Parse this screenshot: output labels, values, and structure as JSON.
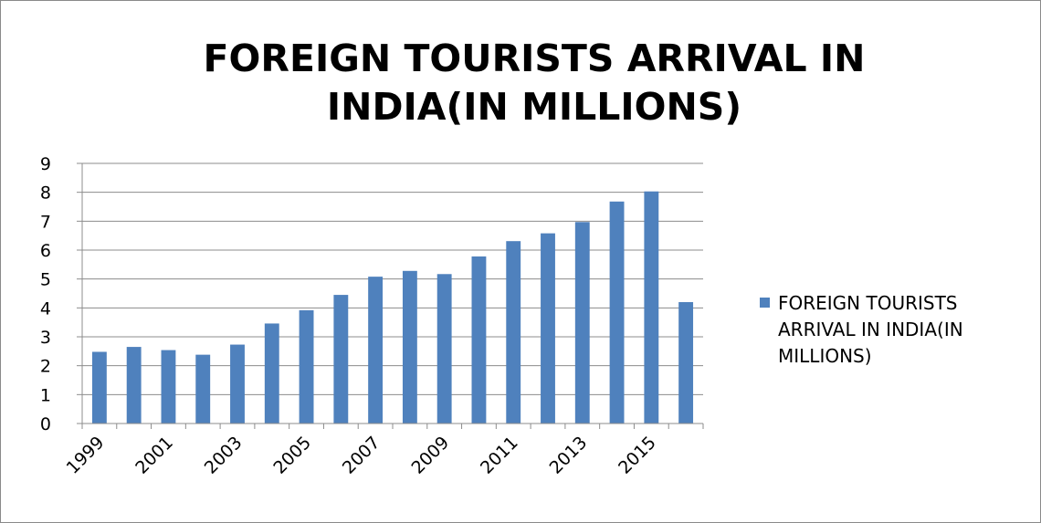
{
  "chart_data": {
    "type": "bar",
    "title": "FOREIGN TOURISTS ARRIVAL IN INDIA(IN MILLIONS)",
    "xlabel": "",
    "ylabel": "",
    "categories": [
      "1999",
      "2000",
      "2001",
      "2002",
      "2003",
      "2004",
      "2005",
      "2006",
      "2007",
      "2008",
      "2009",
      "2010",
      "2011",
      "2012",
      "2013",
      "2014",
      "2015",
      "2016"
    ],
    "x_tick_labels": [
      "1999",
      "2001",
      "2003",
      "2005",
      "2007",
      "2009",
      "2011",
      "2013",
      "2015"
    ],
    "series": [
      {
        "name": "FOREIGN TOURISTS ARRIVAL IN INDIA(IN MILLIONS)",
        "values": [
          2.48,
          2.65,
          2.54,
          2.38,
          2.73,
          3.46,
          3.92,
          4.45,
          5.08,
          5.28,
          5.17,
          5.78,
          6.31,
          6.58,
          6.97,
          7.68,
          8.03,
          4.2
        ],
        "color": "#4f81bd"
      }
    ],
    "y_ticks": [
      0,
      1,
      2,
      3,
      4,
      5,
      6,
      7,
      8,
      9
    ],
    "ylim": [
      0,
      9
    ],
    "grid": true,
    "legend_position": "right"
  }
}
